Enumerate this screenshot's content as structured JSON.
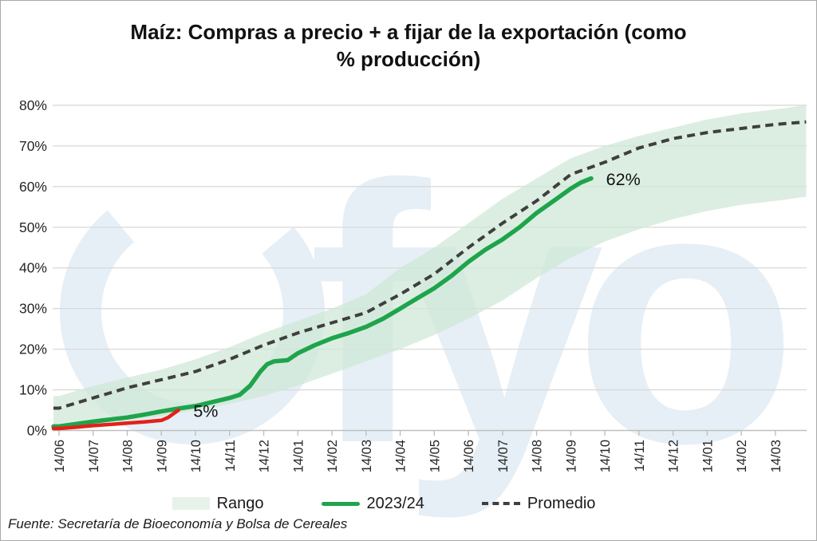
{
  "watermark": "fyo",
  "source": "Fuente: Secretaría de Bioeconomía y Bolsa de Cereales",
  "colors": {
    "green": "#1fa44c",
    "red": "#e32119",
    "dashed": "#3f3f3f",
    "band": "#e7f2ea",
    "watermark": "#e6eff6",
    "grid": "#d9d9d9",
    "axis": "#bfbfbf",
    "text": "#262626"
  },
  "legend": [
    {
      "label": "Rango",
      "swatch": "band"
    },
    {
      "label": "2023/24",
      "swatch": "line"
    },
    {
      "label": "Promedio",
      "swatch": "dashed"
    }
  ],
  "chart_data": {
    "type": "line",
    "title": "Maíz: Compras a precio + a fijar de la exportación (como\n% producción)",
    "x_tick_labels": [
      "14/06",
      "14/07",
      "14/08",
      "14/09",
      "14/10",
      "14/11",
      "14/12",
      "14/01",
      "14/02",
      "14/03",
      "14/04",
      "14/05",
      "14/06",
      "14/07",
      "14/08",
      "14/09",
      "14/10",
      "14/11",
      "14/12",
      "14/01",
      "14/02",
      "14/03"
    ],
    "y_tick_labels": [
      "0%",
      "10%",
      "20%",
      "30%",
      "40%",
      "50%",
      "60%",
      "70%",
      "80%"
    ],
    "ylim": [
      0,
      80
    ],
    "y_unit": "%",
    "grid": "horizontal",
    "legend_position": "bottom",
    "band": {
      "name": "Rango",
      "x": [
        0,
        1,
        2,
        3,
        4,
        5,
        6,
        7,
        8,
        9,
        10,
        11,
        12,
        13,
        14,
        15,
        16,
        17,
        18,
        19,
        20,
        21,
        21.9
      ],
      "upper": [
        8.5,
        11,
        13,
        15,
        17.5,
        20.5,
        24,
        27,
        30,
        33.5,
        40,
        45,
        51,
        57,
        62,
        67,
        70,
        72.5,
        74.5,
        76.5,
        78,
        79,
        80
      ],
      "lower": [
        0.5,
        1.5,
        2.5,
        3.5,
        5,
        6.5,
        8.5,
        11,
        14,
        17,
        20,
        23.5,
        27.5,
        32,
        37.5,
        42.5,
        46.5,
        49.5,
        52,
        54,
        55.5,
        56.5,
        57.5
      ]
    },
    "series": [
      {
        "name": "Promedio",
        "style": "dashed",
        "color": "#3f3f3f",
        "x": [
          0,
          1,
          2,
          3,
          4,
          5,
          6,
          7,
          8,
          9,
          10,
          11,
          12,
          13,
          14,
          15,
          16,
          17,
          18,
          19,
          20,
          21,
          21.9
        ],
        "values": [
          5.5,
          8,
          10.5,
          12.5,
          14.5,
          17.5,
          21,
          24,
          26.5,
          29,
          33.5,
          38.5,
          45,
          51,
          56.5,
          63,
          66,
          69.5,
          71.8,
          73.3,
          74.3,
          75.3,
          75.9
        ]
      },
      {
        "name": "2023/24",
        "style": "solid",
        "color": "#1fa44c",
        "end_label": "62%",
        "x": [
          0,
          0.5,
          1,
          1.5,
          2,
          2.5,
          3,
          3.5,
          4,
          4.5,
          5,
          5.3,
          5.6,
          5.9,
          6.1,
          6.3,
          6.7,
          7,
          7.5,
          8,
          8.5,
          9,
          9.5,
          10,
          10.5,
          11,
          11.5,
          12,
          12.5,
          13,
          13.5,
          14,
          14.5,
          15,
          15.3,
          15.6
        ],
        "values": [
          1,
          1.6,
          2.2,
          2.7,
          3.2,
          3.9,
          4.7,
          5.4,
          6,
          7,
          8,
          8.8,
          11,
          14.5,
          16.3,
          17,
          17.3,
          19,
          21,
          22.7,
          24,
          25.5,
          27.5,
          30,
          32.5,
          35,
          38,
          41.5,
          44.5,
          47,
          50,
          53.5,
          56.5,
          59.5,
          61,
          62
        ]
      },
      {
        "name": "",
        "style": "solid",
        "color": "#e32119",
        "end_label": "5%",
        "x": [
          0,
          0.5,
          1,
          1.5,
          2,
          2.5,
          3,
          3.2,
          3.5
        ],
        "values": [
          0.5,
          0.8,
          1.2,
          1.5,
          1.8,
          2.1,
          2.5,
          3.2,
          5
        ]
      }
    ],
    "annotations": [
      {
        "text": "5%",
        "x": 4.3,
        "y": 4.7
      },
      {
        "text": "62%",
        "x": 16.54,
        "y": 61.7
      }
    ]
  }
}
